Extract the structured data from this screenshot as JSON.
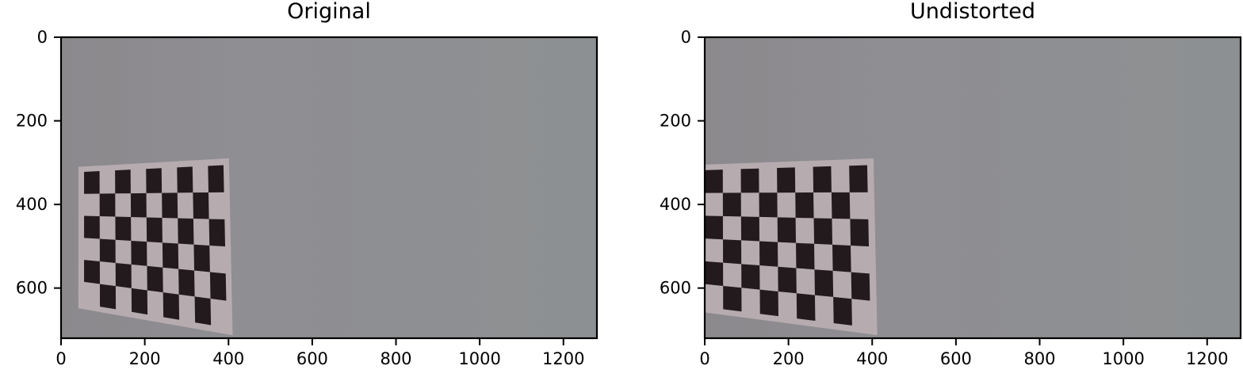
{
  "chart_data": [
    {
      "type": "image",
      "title": "Original",
      "xlabel": "",
      "ylabel": "",
      "xlim": [
        0,
        1280
      ],
      "ylim": [
        720,
        0
      ],
      "xticks": [
        0,
        200,
        400,
        600,
        800,
        1000,
        1200
      ],
      "yticks": [
        0,
        200,
        400,
        600
      ],
      "grid": false,
      "checkerboard": {
        "cols": 9,
        "rows": 6,
        "corners": {
          "top_left": [
            55,
            322
          ],
          "top_right": [
            388,
            306
          ],
          "bottom_right": [
            396,
            695
          ],
          "bottom_left": [
            55,
            638
          ]
        }
      }
    },
    {
      "type": "image",
      "title": "Undistorted",
      "xlabel": "",
      "ylabel": "",
      "xlim": [
        0,
        1280
      ],
      "ylim": [
        720,
        0
      ],
      "xticks": [
        0,
        200,
        400,
        600,
        800,
        1000,
        1200
      ],
      "yticks": [
        0,
        200,
        400,
        600
      ],
      "grid": false,
      "checkerboard": {
        "cols": 9,
        "rows": 6,
        "corners": {
          "top_left": [
            0,
            318
          ],
          "top_right": [
            388,
            306
          ],
          "bottom_right": [
            396,
            695
          ],
          "bottom_left": [
            0,
            645
          ]
        }
      }
    }
  ],
  "colors": {
    "wall": "#8e8f93",
    "paper": "#b6acb0",
    "square": "#231a1e",
    "axes": "#000000"
  }
}
